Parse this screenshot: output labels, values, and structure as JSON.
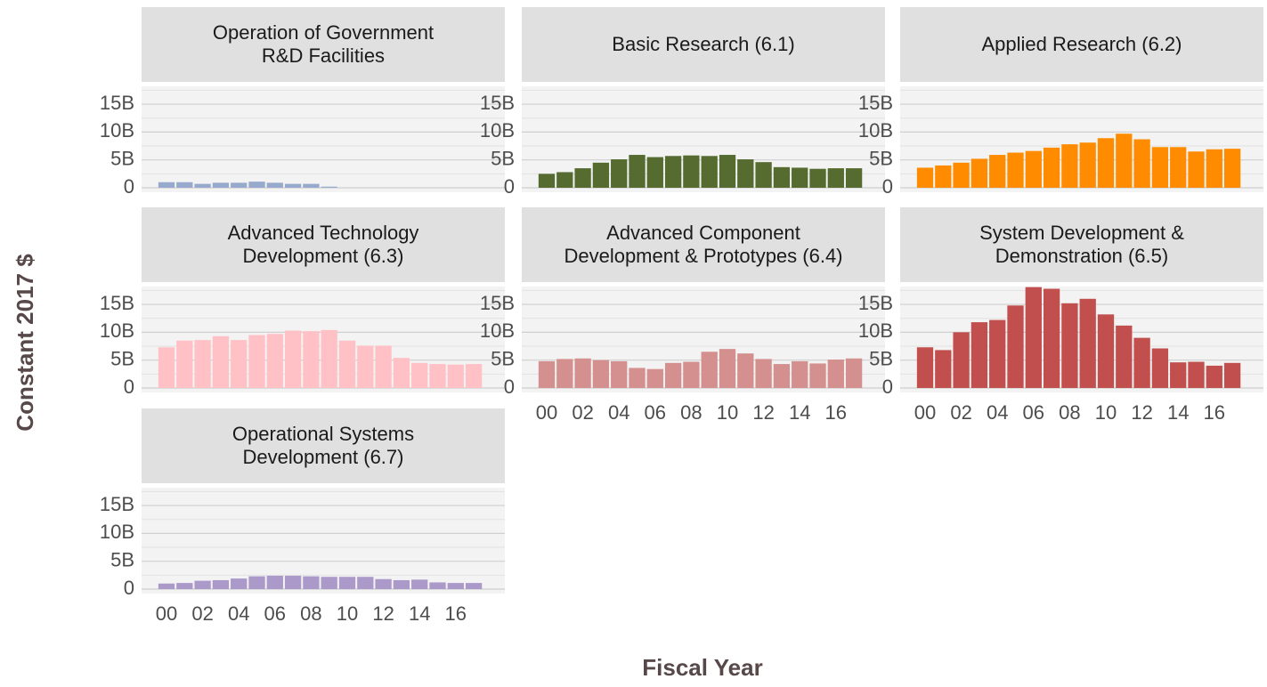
{
  "ylabel": "Constant 2017 $",
  "xlabel": "Fiscal Year",
  "chart_data": [
    {
      "type": "bar",
      "title": "Operation of Government\nR&D Facilities",
      "color": "#97aacd",
      "values": [
        1000000000.0,
        1000000000.0,
        700000000.0,
        900000000.0,
        900000000.0,
        1100000000.0,
        900000000.0,
        700000000.0,
        700000000.0,
        200000000.0,
        0,
        0,
        0,
        0,
        0,
        0,
        0,
        0
      ],
      "ylim": [
        -800000000.0,
        18200000000.0
      ],
      "yticks": [
        0,
        {
          "value": 5000000000.0,
          "label": "5B"
        },
        {
          "value": 10000000000.0,
          "label": "10B"
        },
        {
          "value": 15000000000.0,
          "label": "15B"
        }
      ],
      "minor_yticks": [
        2500000000.0,
        7500000000.0,
        12500000000.0,
        17500000000.0
      ],
      "grid": true
    },
    {
      "type": "bar",
      "title": "Basic Research (6.1)",
      "color": "#556b2f",
      "values": [
        2500000000.0,
        2800000000.0,
        3500000000.0,
        4500000000.0,
        5100000000.0,
        5900000000.0,
        5500000000.0,
        5700000000.0,
        5800000000.0,
        5700000000.0,
        5900000000.0,
        5100000000.0,
        4600000000.0,
        3700000000.0,
        3600000000.0,
        3400000000.0,
        3500000000.0,
        3500000000.0
      ],
      "ylim": [
        -800000000.0,
        18200000000.0
      ],
      "yticks": [
        0,
        {
          "value": 5000000000.0,
          "label": "5B"
        },
        {
          "value": 10000000000.0,
          "label": "10B"
        },
        {
          "value": 15000000000.0,
          "label": "15B"
        }
      ],
      "minor_yticks": [
        2500000000.0,
        7500000000.0,
        12500000000.0,
        17500000000.0
      ],
      "grid": true
    },
    {
      "type": "bar",
      "title": "Applied Research (6.2)",
      "color": "#ff8c00",
      "values": [
        3600000000.0,
        4000000000.0,
        4500000000.0,
        5200000000.0,
        5900000000.0,
        6300000000.0,
        6600000000.0,
        7200000000.0,
        7800000000.0,
        8100000000.0,
        8900000000.0,
        9700000000.0,
        8700000000.0,
        7300000000.0,
        7300000000.0,
        6500000000.0,
        6900000000.0,
        7000000000.0
      ],
      "ylim": [
        -800000000.0,
        18200000000.0
      ],
      "yticks": [
        0,
        {
          "value": 5000000000.0,
          "label": "5B"
        },
        {
          "value": 10000000000.0,
          "label": "10B"
        },
        {
          "value": 15000000000.0,
          "label": "15B"
        }
      ],
      "minor_yticks": [
        2500000000.0,
        7500000000.0,
        12500000000.0,
        17500000000.0
      ],
      "grid": true
    },
    {
      "type": "bar",
      "title": "Advanced Technology\nDevelopment (6.3)",
      "color": "#ffc1c5",
      "values": [
        7300000000.0,
        8500000000.0,
        8600000000.0,
        9300000000.0,
        8600000000.0,
        9500000000.0,
        9700000000.0,
        10300000000.0,
        10200000000.0,
        10400000000.0,
        8500000000.0,
        7600000000.0,
        7600000000.0,
        5400000000.0,
        4500000000.0,
        4300000000.0,
        4200000000.0,
        4300000000.0
      ],
      "ylim": [
        -800000000.0,
        18200000000.0
      ],
      "yticks": [
        0,
        {
          "value": 5000000000.0,
          "label": "5B"
        },
        {
          "value": 10000000000.0,
          "label": "10B"
        },
        {
          "value": 15000000000.0,
          "label": "15B"
        }
      ],
      "minor_yticks": [
        2500000000.0,
        7500000000.0,
        12500000000.0,
        17500000000.0
      ],
      "grid": true
    },
    {
      "type": "bar",
      "title": "Advanced Component\nDevelopment & Prototypes (6.4)",
      "color": "#d4908e",
      "categories": [
        "00",
        null,
        "02",
        null,
        "04",
        null,
        "06",
        null,
        "08",
        null,
        "10",
        null,
        "12",
        null,
        "14",
        null,
        "16",
        null
      ],
      "values": [
        4800000000.0,
        5200000000.0,
        5300000000.0,
        5000000000.0,
        4800000000.0,
        3600000000.0,
        3400000000.0,
        4500000000.0,
        4700000000.0,
        6500000000.0,
        7000000000.0,
        6200000000.0,
        5200000000.0,
        4300000000.0,
        4800000000.0,
        4400000000.0,
        5100000000.0,
        5300000000.0
      ],
      "ylim": [
        -800000000.0,
        18200000000.0
      ],
      "yticks": [
        0,
        {
          "value": 5000000000.0,
          "label": "5B"
        },
        {
          "value": 10000000000.0,
          "label": "10B"
        },
        {
          "value": 15000000000.0,
          "label": "15B"
        }
      ],
      "minor_yticks": [
        2500000000.0,
        7500000000.0,
        12500000000.0,
        17500000000.0
      ],
      "grid": true
    },
    {
      "type": "bar",
      "title": "System Development &\nDemonstration (6.5)",
      "color": "#c14f4d",
      "categories": [
        "00",
        null,
        "02",
        null,
        "04",
        null,
        "06",
        null,
        "08",
        null,
        "10",
        null,
        "12",
        null,
        "14",
        null,
        "16",
        null
      ],
      "values": [
        7300000000.0,
        6800000000.0,
        10000000000.0,
        11800000000.0,
        12200000000.0,
        14800000000.0,
        18100000000.0,
        17800000000.0,
        15200000000.0,
        16000000000.0,
        13200000000.0,
        11200000000.0,
        9000000000.0,
        7100000000.0,
        4600000000.0,
        4700000000.0,
        4000000000.0,
        4500000000.0
      ],
      "ylim": [
        -800000000.0,
        18200000000.0
      ],
      "yticks": [
        0,
        {
          "value": 5000000000.0,
          "label": "5B"
        },
        {
          "value": 10000000000.0,
          "label": "10B"
        },
        {
          "value": 15000000000.0,
          "label": "15B"
        }
      ],
      "minor_yticks": [
        2500000000.0,
        7500000000.0,
        12500000000.0,
        17500000000.0
      ],
      "grid": true
    },
    {
      "type": "bar",
      "title": "Operational Systems\nDevelopment (6.7)",
      "color": "#ab9ac9",
      "categories": [
        "00",
        null,
        "02",
        null,
        "04",
        null,
        "06",
        null,
        "08",
        null,
        "10",
        null,
        "12",
        null,
        "14",
        null,
        "16",
        null
      ],
      "values": [
        1000000000.0,
        1100000000.0,
        1500000000.0,
        1600000000.0,
        1900000000.0,
        2300000000.0,
        2400000000.0,
        2400000000.0,
        2300000000.0,
        2200000000.0,
        2200000000.0,
        2200000000.0,
        1800000000.0,
        1600000000.0,
        1700000000.0,
        1200000000.0,
        1100000000.0,
        1100000000.0
      ],
      "ylim": [
        -800000000.0,
        18200000000.0
      ],
      "yticks": [
        0,
        {
          "value": 5000000000.0,
          "label": "5B"
        },
        {
          "value": 10000000000.0,
          "label": "10B"
        },
        {
          "value": 15000000000.0,
          "label": "15B"
        }
      ],
      "minor_yticks": [
        2500000000.0,
        7500000000.0,
        12500000000.0,
        17500000000.0
      ],
      "grid": true
    }
  ]
}
